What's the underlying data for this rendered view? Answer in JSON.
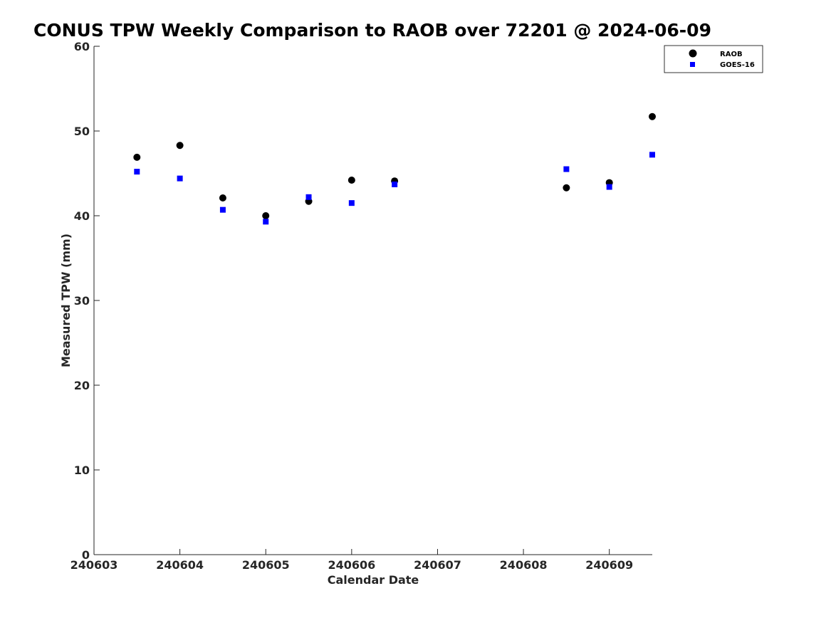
{
  "chart_data": {
    "type": "scatter",
    "title": "CONUS TPW Weekly Comparison to RAOB over 72201 @ 2024-06-09",
    "xlabel": "Calendar Date",
    "ylabel": "Measured TPW (mm)",
    "xlim": [
      240603,
      240609.5
    ],
    "ylim": [
      0,
      60
    ],
    "x_ticks": [
      240603,
      240604,
      240605,
      240606,
      240607,
      240608,
      240609
    ],
    "x_tick_labels": [
      "240603",
      "240604",
      "240605",
      "240606",
      "240607",
      "240608",
      "240609"
    ],
    "y_ticks": [
      0,
      10,
      20,
      30,
      40,
      50,
      60
    ],
    "y_tick_labels": [
      "0",
      "10",
      "20",
      "30",
      "40",
      "50",
      "60"
    ],
    "grid": false,
    "legend_position": "top-right",
    "series": [
      {
        "name": "RAOB",
        "marker": "circle",
        "color": "#000000",
        "points": [
          {
            "x": 240603.5,
            "y": 46.9
          },
          {
            "x": 240604.0,
            "y": 48.3
          },
          {
            "x": 240604.5,
            "y": 42.1
          },
          {
            "x": 240605.0,
            "y": 40.0
          },
          {
            "x": 240605.5,
            "y": 41.7
          },
          {
            "x": 240606.0,
            "y": 44.2
          },
          {
            "x": 240606.5,
            "y": 44.1
          },
          {
            "x": 240608.5,
            "y": 43.3
          },
          {
            "x": 240609.0,
            "y": 43.9
          },
          {
            "x": 240609.5,
            "y": 51.7
          }
        ]
      },
      {
        "name": "GOES-16",
        "marker": "square",
        "color": "#0000ff",
        "points": [
          {
            "x": 240603.5,
            "y": 45.2
          },
          {
            "x": 240604.0,
            "y": 44.4
          },
          {
            "x": 240604.5,
            "y": 40.7
          },
          {
            "x": 240605.0,
            "y": 39.3
          },
          {
            "x": 240605.5,
            "y": 42.2
          },
          {
            "x": 240606.0,
            "y": 41.5
          },
          {
            "x": 240606.5,
            "y": 43.7
          },
          {
            "x": 240608.5,
            "y": 45.5
          },
          {
            "x": 240609.0,
            "y": 43.4
          },
          {
            "x": 240609.5,
            "y": 47.2
          }
        ]
      }
    ]
  }
}
